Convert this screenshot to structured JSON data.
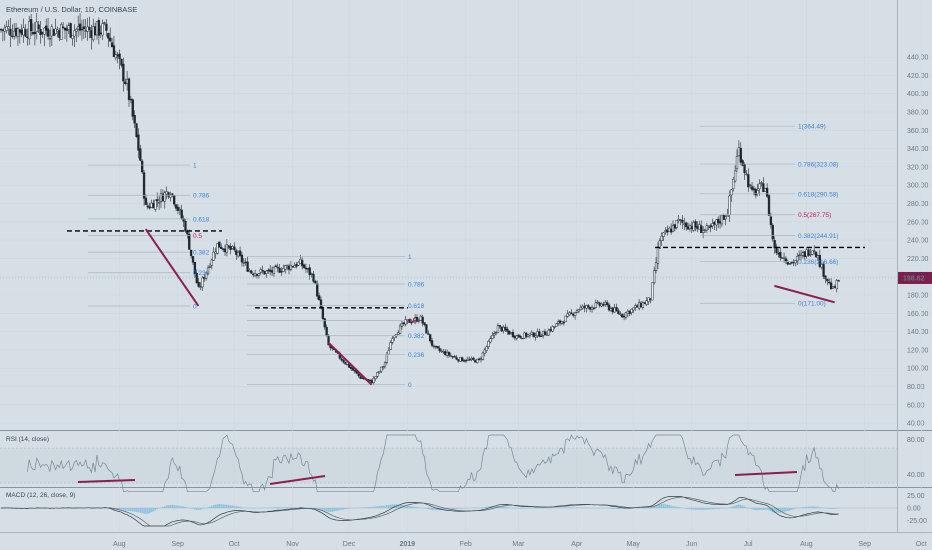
{
  "header": {
    "title": "Ethereum / U.S. Dollar, 1D, COINBASE"
  },
  "price_axis": {
    "labels": [
      "440.00",
      "420.00",
      "400.00",
      "380.00",
      "360.00",
      "340.00",
      "320.00",
      "300.00",
      "280.00",
      "260.00",
      "240.00",
      "220.00",
      "200.00",
      "180.00",
      "160.00",
      "140.00",
      "120.00",
      "100.00",
      "80.00",
      "60.00",
      "40.00"
    ]
  },
  "last_price": {
    "text": "198.62",
    "value": 198.62,
    "color": "#7a1f4f"
  },
  "time_axis": {
    "labels": [
      "Aug",
      "Sep",
      "Oct",
      "Nov",
      "Dec",
      "2019",
      "Feb",
      "Mar",
      "Apr",
      "May",
      "Jun",
      "Jul",
      "Aug",
      "Sep",
      "Oct"
    ]
  },
  "rsi": {
    "label": "RSI (14, close)",
    "axis_labels": [
      "80.00",
      "40.00"
    ]
  },
  "macd": {
    "label": "MACD (12, 26, close, 9)",
    "axis_labels": [
      "25.00",
      "0.00",
      "-25.00"
    ]
  },
  "colors": {
    "background": "#d6dfe6",
    "candle": "#1e272e",
    "fib_line": "#a8b4bc",
    "fib_text": "#3f7fd1",
    "fib_text_mid": "#c2185b",
    "trendline": "#8b1e4f",
    "dashed": "#000000",
    "rsi_line": "#7a8892",
    "macd_hist": "#8ec3df"
  },
  "chart_data": {
    "type": "candlestick",
    "title": "Ethereum / U.S. Dollar, 1D, COINBASE",
    "xlabel": "",
    "ylabel": "",
    "ylim": [
      40,
      440
    ],
    "x_ticks": [
      "Aug",
      "Sep",
      "Oct",
      "Nov",
      "Dec",
      "2019",
      "Feb",
      "Mar",
      "Apr",
      "May",
      "Jun",
      "Jul",
      "Aug",
      "Sep",
      "Oct"
    ],
    "price_path": [
      [
        "2018-07-25",
        470
      ],
      [
        "2018-08-05",
        410
      ],
      [
        "2018-08-12",
        330
      ],
      [
        "2018-08-15",
        275
      ],
      [
        "2018-08-22",
        285
      ],
      [
        "2018-08-28",
        295
      ],
      [
        "2018-09-05",
        255
      ],
      [
        "2018-09-12",
        185
      ],
      [
        "2018-09-17",
        210
      ],
      [
        "2018-09-22",
        235
      ],
      [
        "2018-10-01",
        228
      ],
      [
        "2018-10-10",
        205
      ],
      [
        "2018-10-20",
        205
      ],
      [
        "2018-11-05",
        215
      ],
      [
        "2018-11-12",
        200
      ],
      [
        "2018-11-16",
        165
      ],
      [
        "2018-11-20",
        125
      ],
      [
        "2018-11-27",
        110
      ],
      [
        "2018-12-07",
        90
      ],
      [
        "2018-12-13",
        85
      ],
      [
        "2018-12-20",
        105
      ],
      [
        "2018-12-24",
        135
      ],
      [
        "2018-12-31",
        150
      ],
      [
        "2019-01-08",
        155
      ],
      [
        "2019-01-15",
        122
      ],
      [
        "2019-01-28",
        110
      ],
      [
        "2019-02-08",
        108
      ],
      [
        "2019-02-18",
        145
      ],
      [
        "2019-02-28",
        135
      ],
      [
        "2019-03-15",
        138
      ],
      [
        "2019-04-02",
        165
      ],
      [
        "2019-04-15",
        170
      ],
      [
        "2019-04-25",
        158
      ],
      [
        "2019-05-10",
        175
      ],
      [
        "2019-05-15",
        240
      ],
      [
        "2019-05-25",
        260
      ],
      [
        "2019-06-10",
        250
      ],
      [
        "2019-06-20",
        270
      ],
      [
        "2019-06-26",
        340
      ],
      [
        "2019-07-03",
        290
      ],
      [
        "2019-07-10",
        300
      ],
      [
        "2019-07-15",
        230
      ],
      [
        "2019-07-24",
        215
      ],
      [
        "2019-08-05",
        232
      ],
      [
        "2019-08-10",
        205
      ],
      [
        "2019-08-15",
        185
      ],
      [
        "2019-08-19",
        198.62
      ]
    ],
    "fib_retracements": [
      {
        "levels": [
          {
            "label": "1"
          },
          {
            "label": "0.786"
          },
          {
            "label": "0.618"
          },
          {
            "label": "0.5"
          },
          {
            "label": "0.382"
          },
          {
            "label": "0.236"
          },
          {
            "label": "0"
          }
        ],
        "low": 168,
        "high": 322
      },
      {
        "levels": [
          {
            "label": "1"
          },
          {
            "label": "0.786"
          },
          {
            "label": "0.618"
          },
          {
            "label": "0.5"
          },
          {
            "label": "0.382"
          },
          {
            "label": "0.236"
          },
          {
            "label": "0"
          }
        ],
        "low": 82,
        "high": 222
      },
      {
        "levels": [
          {
            "label": "1(364.49)"
          },
          {
            "label": "0.786(323.08)"
          },
          {
            "label": "0.618(290.58)"
          },
          {
            "label": "0.5(267.75)"
          },
          {
            "label": "0.382(244.91)"
          },
          {
            "label": "0.236(216.66)"
          },
          {
            "label": "0(171.00)"
          }
        ],
        "low": 171,
        "high": 364.49
      }
    ],
    "horizontal_levels": [
      250,
      166,
      232
    ],
    "last_price": 198.62
  }
}
